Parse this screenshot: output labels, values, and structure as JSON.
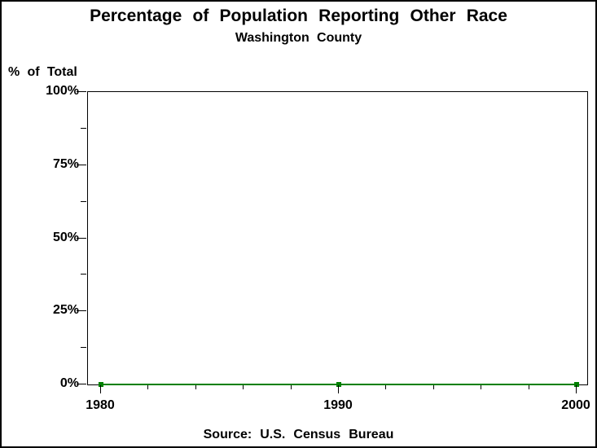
{
  "chart_data": {
    "type": "line",
    "title": "Percentage of Population Reporting Other Race",
    "subtitle": "Washington County",
    "ylabel": "% of Total",
    "source_note": "Source: U.S. Census Bureau",
    "x": [
      1980,
      1990,
      2000
    ],
    "series": [
      {
        "name": "percent-reporting-other-race",
        "values": [
          0,
          0,
          0
        ]
      }
    ],
    "xlim": [
      1980,
      2000
    ],
    "ylim": [
      0,
      100
    ],
    "ytick_values": [
      0,
      25,
      50,
      75,
      100
    ],
    "ytick_labels": [
      "0%",
      "25%",
      "50%",
      "75%",
      "100%"
    ],
    "y_minor_tick_values": [
      12.5,
      37.5,
      62.5,
      87.5
    ],
    "xtick_values": [
      1980,
      1990,
      2000
    ],
    "xtick_labels": [
      "1980",
      "1990",
      "2000"
    ],
    "x_minor_tick_values": [
      1982,
      1984,
      1986,
      1988,
      1992,
      1994,
      1996,
      1998
    ],
    "line_color": "#008000",
    "marker": "square",
    "text_color": "#000000",
    "grid": false,
    "frame": true,
    "legend_position": "none"
  }
}
